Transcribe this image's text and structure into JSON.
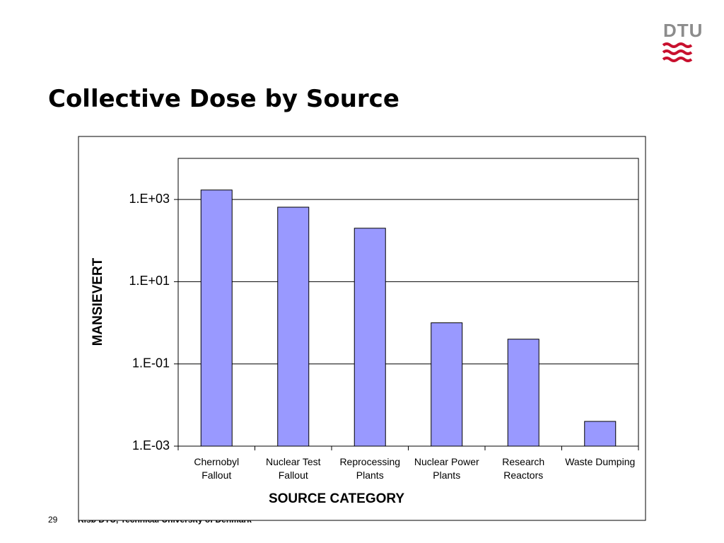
{
  "slide": {
    "title": "Collective Dose by Source",
    "logo": "DTU",
    "page_number": "29",
    "footer": "Risø DTU, Technical University of Denmark"
  },
  "chart_data": {
    "type": "bar",
    "x_label": "SOURCE CATEGORY",
    "y_label": "MANSIEVERT",
    "categories": [
      "Chernobyl Fallout",
      "Nuclear Test Fallout",
      "Reprocessing Plants",
      "Nuclear Power Plants",
      "Research Reactors",
      "Waste Dumping"
    ],
    "values": [
      1700,
      650,
      200,
      1.0,
      0.4,
      0.004
    ],
    "color": "#9999ff",
    "log_scale": true,
    "grid": true,
    "ylim": [
      0.001,
      10000
    ],
    "yticks": [
      {
        "value": 0.001,
        "label": "1.E-03"
      },
      {
        "value": 0.1,
        "label": "1.E-01"
      },
      {
        "value": 10,
        "label": "1.E+01"
      },
      {
        "value": 1000,
        "label": "1.E+03"
      }
    ]
  }
}
